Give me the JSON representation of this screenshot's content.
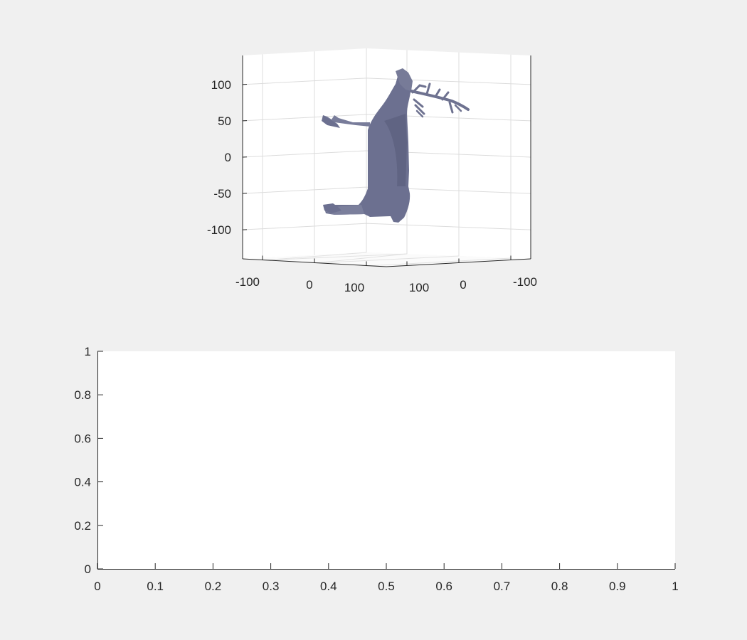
{
  "chart_data": [
    {
      "type": "surface3d",
      "object": "deer",
      "surface_color": "#6e7290",
      "grid": true,
      "zlim": [
        -140,
        140
      ],
      "z_ticks": [
        {
          "label": "100",
          "value": 100
        },
        {
          "label": "50",
          "value": 50
        },
        {
          "label": "0",
          "value": 0
        },
        {
          "label": "-50",
          "value": -50
        },
        {
          "label": "-100",
          "value": -100
        }
      ],
      "x_ticks": [
        {
          "label": "-100",
          "value": -100
        },
        {
          "label": "0",
          "value": 0
        },
        {
          "label": "100",
          "value": 100
        }
      ],
      "y_ticks": [
        {
          "label": "100",
          "value": 100
        },
        {
          "label": "0",
          "value": 0
        },
        {
          "label": "-100",
          "value": -100
        }
      ]
    },
    {
      "type": "line",
      "series": [],
      "grid": false,
      "xlim": [
        0,
        1
      ],
      "ylim": [
        0,
        1
      ],
      "x_ticks": [
        "0",
        "0.1",
        "0.2",
        "0.3",
        "0.4",
        "0.5",
        "0.6",
        "0.7",
        "0.8",
        "0.9",
        "1"
      ],
      "y_ticks": [
        "0",
        "0.2",
        "0.4",
        "0.6",
        "0.8",
        "1"
      ]
    }
  ]
}
